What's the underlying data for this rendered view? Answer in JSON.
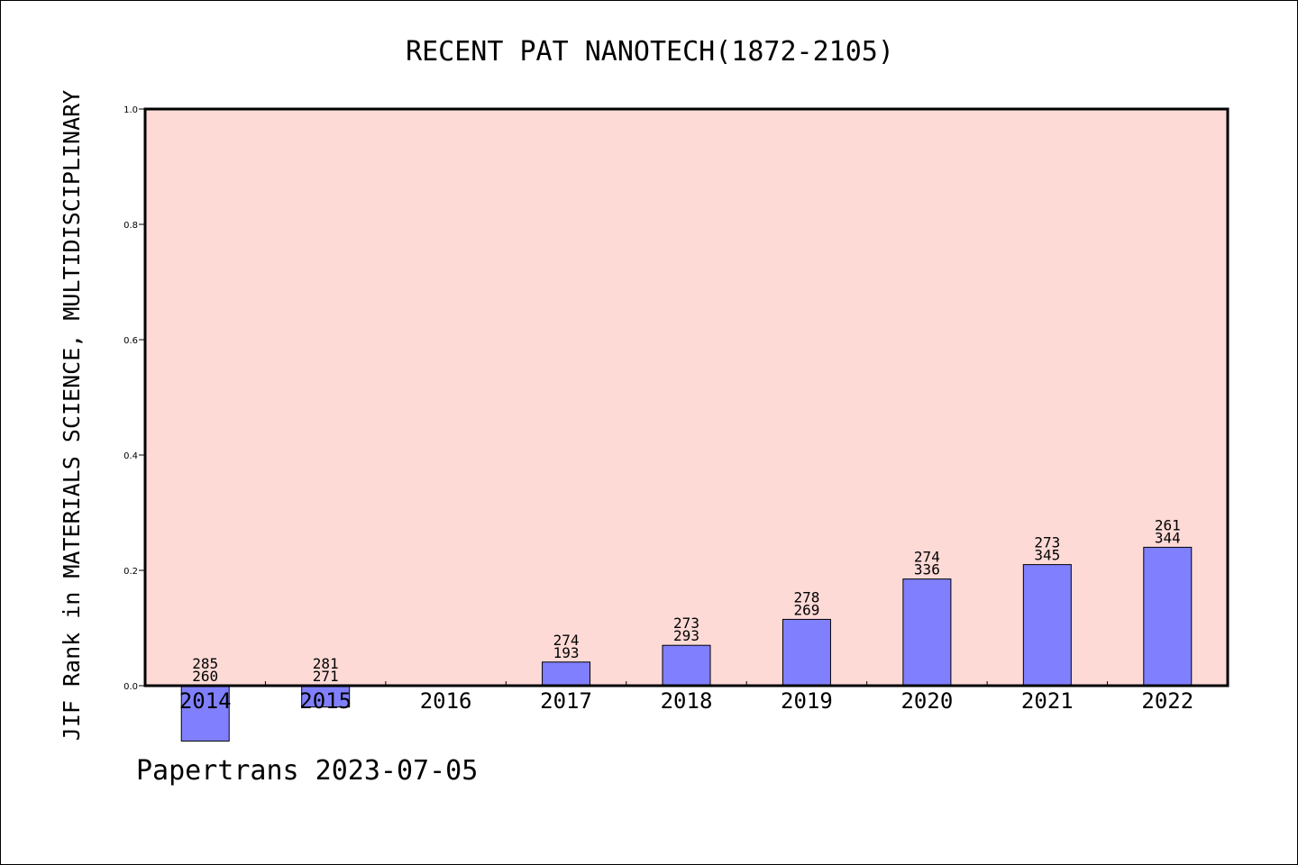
{
  "chart_data": {
    "type": "bar",
    "title": "RECENT PAT NANOTECH(1872-2105)",
    "xlabel": "",
    "ylabel": "JIF Rank in MATERIALS SCIENCE, MULTIDISCIPLINARY",
    "ylim": [
      0.0,
      1.0
    ],
    "yticks": [
      "0.0",
      "0.2",
      "0.4",
      "0.6",
      "0.8",
      "1.0"
    ],
    "yticks_values": [
      0.0,
      0.2,
      0.4,
      0.6,
      0.8,
      1.0
    ],
    "categories": [
      "2014",
      "2015",
      "2016",
      "2017",
      "2018",
      "2019",
      "2020",
      "2021",
      "2022"
    ],
    "values": [
      -0.096,
      -0.037,
      null,
      0.041,
      0.07,
      0.115,
      0.185,
      0.21,
      0.24
    ],
    "rank_labels": [
      [
        "285",
        "260"
      ],
      [
        "281",
        "271"
      ],
      null,
      [
        "274",
        "193"
      ],
      [
        "273",
        "293"
      ],
      [
        "278",
        "269"
      ],
      [
        "274",
        "336"
      ],
      [
        "273",
        "345"
      ],
      [
        "261",
        "344"
      ]
    ],
    "grid": false,
    "colors": {
      "plot_bg": "#fddad6",
      "bar_fill": "#8080ff",
      "bar_stroke": "#000000"
    }
  },
  "footer": {
    "text": "Papertrans 2023-07-05"
  }
}
